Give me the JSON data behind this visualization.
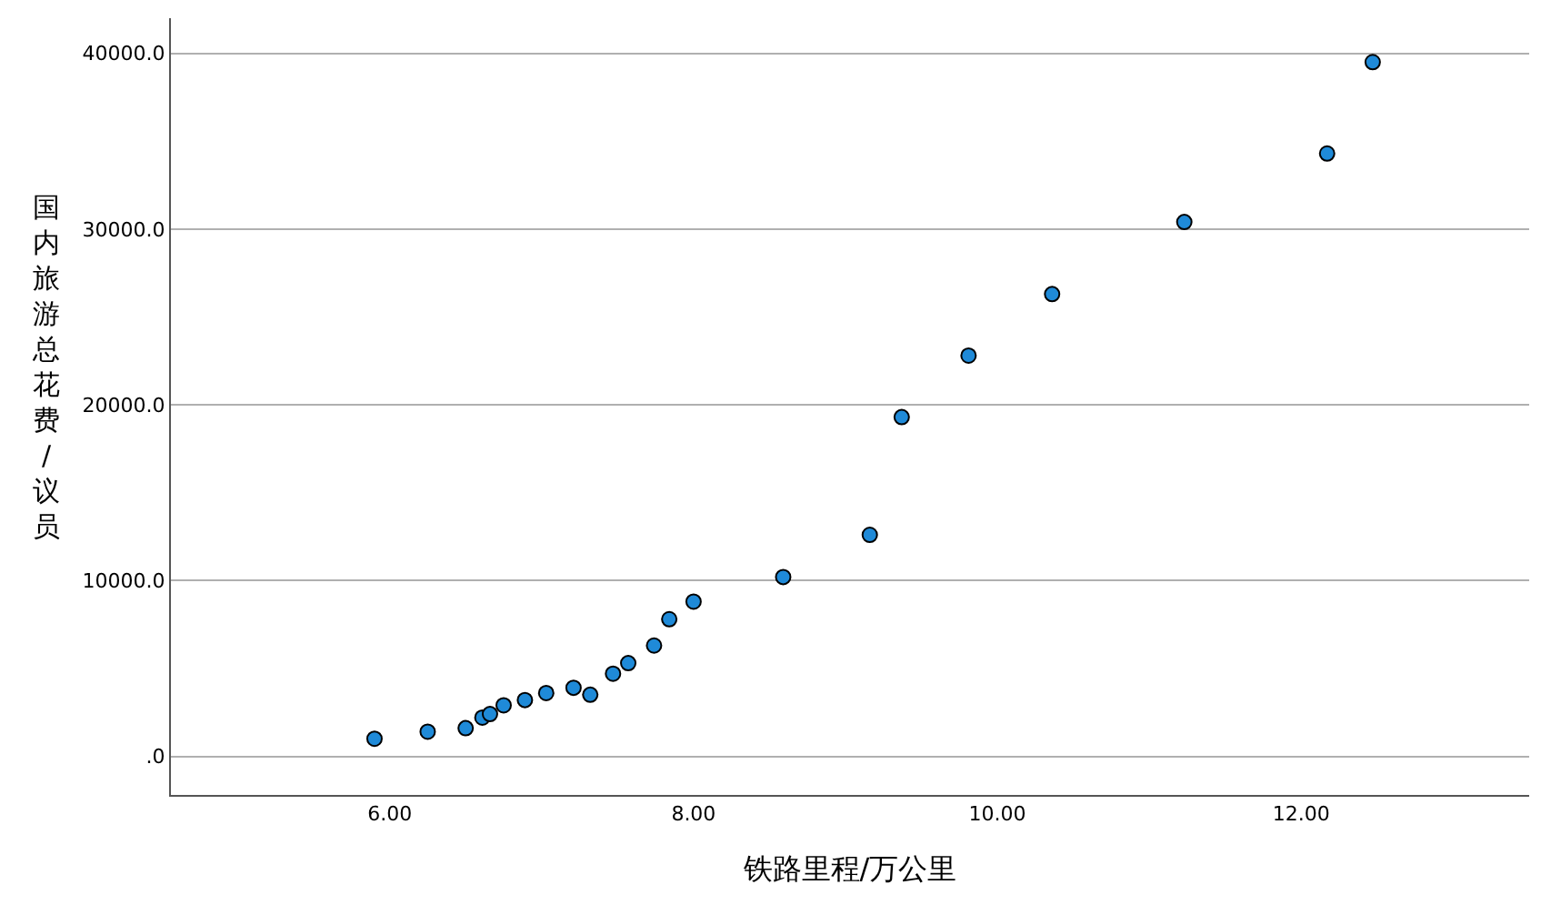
{
  "chart_data": {
    "type": "scatter",
    "xlabel": "铁路里程/万公里",
    "ylabel": "国内旅游总花费/议员",
    "x": [
      5.9,
      6.25,
      6.5,
      6.61,
      6.66,
      6.75,
      6.89,
      7.03,
      7.21,
      7.32,
      7.47,
      7.57,
      7.74,
      7.84,
      8.0,
      8.59,
      9.16,
      9.37,
      9.81,
      10.36,
      11.23,
      12.17,
      12.47
    ],
    "series": [
      {
        "color": "#1f8ad8",
        "values": [
          1000,
          1400,
          1600,
          2200,
          2400,
          2900,
          3200,
          3600,
          3900,
          3500,
          4700,
          5300,
          6300,
          7800,
          8800,
          10200,
          12600,
          19300,
          22800,
          26300,
          30400,
          34300,
          39500
        ]
      }
    ],
    "xlim": [
      4.56,
      13.5
    ],
    "ylim": [
      -2200,
      42000
    ],
    "xticks": [
      {
        "value": 6,
        "label": "6.00"
      },
      {
        "value": 8,
        "label": "8.00"
      },
      {
        "value": 10,
        "label": "10.00"
      },
      {
        "value": 12,
        "label": "12.00"
      }
    ],
    "yticks": [
      {
        "value": 0,
        "label": ".0"
      },
      {
        "value": 10000,
        "label": "10000.0"
      },
      {
        "value": 20000,
        "label": "20000.0"
      },
      {
        "value": 30000,
        "label": "30000.0"
      },
      {
        "value": 40000,
        "label": "40000.0"
      }
    ],
    "grid": "y",
    "marker": "circle"
  }
}
